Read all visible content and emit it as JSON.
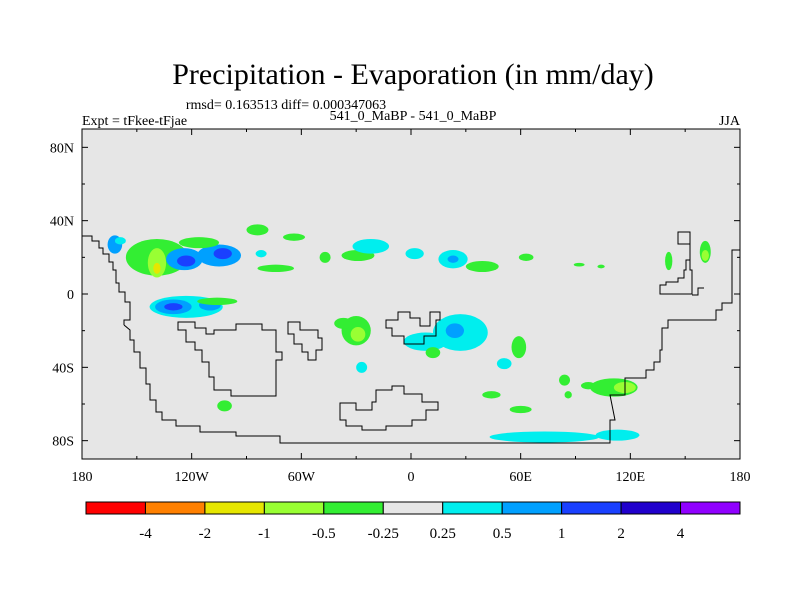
{
  "chart_data": {
    "type": "heatmap",
    "title": "Precipitation - Evaporation (in mm/day)",
    "stats_line": "rmsd= 0.163513 diff= 0.000347063",
    "left_label": "Expt = tFkee-tFjae",
    "center_label": "541_0_MaBP - 541_0_MaBP",
    "right_label": "JJA",
    "xlim": [
      180,
      540
    ],
    "ylim": [
      -90,
      90
    ],
    "x_ticks": [
      {
        "value": 180,
        "label": "180"
      },
      {
        "value": 240,
        "label": "120W"
      },
      {
        "value": 300,
        "label": "60W"
      },
      {
        "value": 360,
        "label": "0"
      },
      {
        "value": 420,
        "label": "60E"
      },
      {
        "value": 480,
        "label": "120E"
      },
      {
        "value": 540,
        "label": "180"
      }
    ],
    "y_ticks": [
      {
        "value": 80,
        "label": "80N"
      },
      {
        "value": 40,
        "label": "40N"
      },
      {
        "value": 0,
        "label": "0"
      },
      {
        "value": -40,
        "label": "40S"
      },
      {
        "value": -80,
        "label": "80S"
      }
    ],
    "colorbar": {
      "levels": [
        -4,
        -2,
        -1,
        -0.5,
        -0.25,
        0.25,
        0.5,
        1,
        2,
        4
      ],
      "labels": [
        "-4",
        "-2",
        "-1",
        "-0.5",
        "-0.25",
        "0.25",
        "0.5",
        "1",
        "2",
        "4"
      ],
      "colors": [
        "#ff0000",
        "#ff8000",
        "#e6e600",
        "#99ff33",
        "#33ee33",
        "#e6e6e6",
        "#00eeee",
        "#00a0ff",
        "#1a40ff",
        "#2000cc",
        "#9000ff"
      ]
    },
    "field_regions": [
      {
        "name": "blob-1",
        "lon": 198,
        "lat": 27,
        "rx": 4,
        "ry": 5,
        "level": 7
      },
      {
        "name": "blob-2",
        "lon": 201,
        "lat": 29,
        "rx": 3,
        "ry": 2,
        "level": 6
      },
      {
        "name": "blob-3",
        "lon": 221,
        "lat": 20,
        "rx": 17,
        "ry": 10,
        "level": 4
      },
      {
        "name": "blob-4",
        "lon": 221,
        "lat": 17,
        "rx": 5,
        "ry": 8,
        "level": 3
      },
      {
        "name": "blob-5",
        "lon": 221,
        "lat": 14,
        "rx": 2,
        "ry": 3,
        "level": 2
      },
      {
        "name": "blob-6",
        "lon": 236,
        "lat": 19,
        "rx": 10,
        "ry": 6,
        "level": 7
      },
      {
        "name": "blob-7",
        "lon": 237,
        "lat": 18,
        "rx": 5,
        "ry": 3,
        "level": 8
      },
      {
        "name": "blob-8",
        "lon": 255,
        "lat": 21,
        "rx": 12,
        "ry": 6,
        "level": 7
      },
      {
        "name": "blob-9",
        "lon": 257,
        "lat": 22,
        "rx": 5,
        "ry": 3,
        "level": 8
      },
      {
        "name": "blob-10",
        "lon": 244,
        "lat": 28,
        "rx": 11,
        "ry": 3,
        "level": 4
      },
      {
        "name": "blob-11",
        "lon": 276,
        "lat": 35,
        "rx": 6,
        "ry": 3,
        "level": 4
      },
      {
        "name": "blob-12",
        "lon": 296,
        "lat": 31,
        "rx": 6,
        "ry": 2,
        "level": 4
      },
      {
        "name": "blob-13",
        "lon": 286,
        "lat": 14,
        "rx": 10,
        "ry": 2,
        "level": 4
      },
      {
        "name": "blob-14",
        "lon": 278,
        "lat": 22,
        "rx": 3,
        "ry": 2,
        "level": 6
      },
      {
        "name": "blob-15",
        "lon": 313,
        "lat": 20,
        "rx": 3,
        "ry": 3,
        "level": 4
      },
      {
        "name": "blob-16",
        "lon": 331,
        "lat": 21,
        "rx": 9,
        "ry": 3,
        "level": 4
      },
      {
        "name": "blob-17",
        "lon": 338,
        "lat": 26,
        "rx": 10,
        "ry": 4,
        "level": 6
      },
      {
        "name": "blob-18",
        "lon": 362,
        "lat": 22,
        "rx": 5,
        "ry": 3,
        "level": 6
      },
      {
        "name": "blob-19",
        "lon": 383,
        "lat": 19,
        "rx": 8,
        "ry": 5,
        "level": 6
      },
      {
        "name": "blob-20",
        "lon": 383,
        "lat": 19,
        "rx": 3,
        "ry": 2,
        "level": 7
      },
      {
        "name": "blob-21",
        "lon": 399,
        "lat": 15,
        "rx": 9,
        "ry": 3,
        "level": 4
      },
      {
        "name": "blob-22",
        "lon": 423,
        "lat": 20,
        "rx": 4,
        "ry": 2,
        "level": 4
      },
      {
        "name": "blob-23",
        "lon": 452,
        "lat": 16,
        "rx": 3,
        "ry": 1,
        "level": 4
      },
      {
        "name": "blob-24",
        "lon": 464,
        "lat": 15,
        "rx": 2,
        "ry": 1,
        "level": 4
      },
      {
        "name": "blob-25",
        "lon": 501,
        "lat": 18,
        "rx": 2,
        "ry": 5,
        "level": 4
      },
      {
        "name": "blob-26",
        "lon": 521,
        "lat": 23,
        "rx": 3,
        "ry": 6,
        "level": 4
      },
      {
        "name": "blob-27",
        "lon": 521,
        "lat": 21,
        "rx": 2,
        "ry": 3,
        "level": 3
      },
      {
        "name": "blob-28",
        "lon": 237,
        "lat": -7,
        "rx": 20,
        "ry": 6,
        "level": 6
      },
      {
        "name": "blob-29",
        "lon": 230,
        "lat": -7,
        "rx": 10,
        "ry": 4,
        "level": 7
      },
      {
        "name": "blob-30",
        "lon": 230,
        "lat": -7,
        "rx": 5,
        "ry": 2,
        "level": 8
      },
      {
        "name": "blob-31",
        "lon": 250,
        "lat": -6,
        "rx": 6,
        "ry": 3,
        "level": 7
      },
      {
        "name": "blob-32",
        "lon": 254,
        "lat": -4,
        "rx": 11,
        "ry": 2,
        "level": 4
      },
      {
        "name": "blob-33",
        "lon": 330,
        "lat": -20,
        "rx": 8,
        "ry": 8,
        "level": 4
      },
      {
        "name": "blob-34",
        "lon": 331,
        "lat": -22,
        "rx": 4,
        "ry": 4,
        "level": 3
      },
      {
        "name": "blob-35",
        "lon": 323,
        "lat": -16,
        "rx": 5,
        "ry": 3,
        "level": 4
      },
      {
        "name": "blob-36",
        "lon": 333,
        "lat": -40,
        "rx": 3,
        "ry": 3,
        "level": 6
      },
      {
        "name": "blob-37",
        "lon": 368,
        "lat": -26,
        "rx": 12,
        "ry": 5,
        "level": 6
      },
      {
        "name": "blob-38",
        "lon": 372,
        "lat": -32,
        "rx": 4,
        "ry": 3,
        "level": 4
      },
      {
        "name": "blob-39",
        "lon": 387,
        "lat": -21,
        "rx": 15,
        "ry": 10,
        "level": 6
      },
      {
        "name": "blob-40",
        "lon": 384,
        "lat": -20,
        "rx": 5,
        "ry": 4,
        "level": 7
      },
      {
        "name": "blob-41",
        "lon": 419,
        "lat": -29,
        "rx": 4,
        "ry": 6,
        "level": 4
      },
      {
        "name": "blob-42",
        "lon": 411,
        "lat": -38,
        "rx": 4,
        "ry": 3,
        "level": 6
      },
      {
        "name": "blob-43",
        "lon": 444,
        "lat": -47,
        "rx": 3,
        "ry": 3,
        "level": 4
      },
      {
        "name": "blob-44",
        "lon": 446,
        "lat": -55,
        "rx": 2,
        "ry": 2,
        "level": 4
      },
      {
        "name": "blob-45",
        "lon": 457,
        "lat": -50,
        "rx": 4,
        "ry": 2,
        "level": 4
      },
      {
        "name": "blob-46",
        "lon": 471,
        "lat": -51,
        "rx": 13,
        "ry": 5,
        "level": 4
      },
      {
        "name": "blob-47",
        "lon": 477,
        "lat": -51,
        "rx": 6,
        "ry": 3,
        "level": 3
      },
      {
        "name": "blob-48",
        "lon": 404,
        "lat": -55,
        "rx": 5,
        "ry": 2,
        "level": 4
      },
      {
        "name": "blob-49",
        "lon": 420,
        "lat": -63,
        "rx": 6,
        "ry": 2,
        "level": 4
      },
      {
        "name": "blob-50",
        "lon": 258,
        "lat": -61,
        "rx": 4,
        "ry": 3,
        "level": 4
      },
      {
        "name": "blob-51",
        "lon": 433,
        "lat": -78,
        "rx": 30,
        "ry": 3,
        "level": 6
      },
      {
        "name": "blob-52",
        "lon": 473,
        "lat": -77,
        "rx": 12,
        "ry": 3,
        "level": 6
      }
    ]
  }
}
